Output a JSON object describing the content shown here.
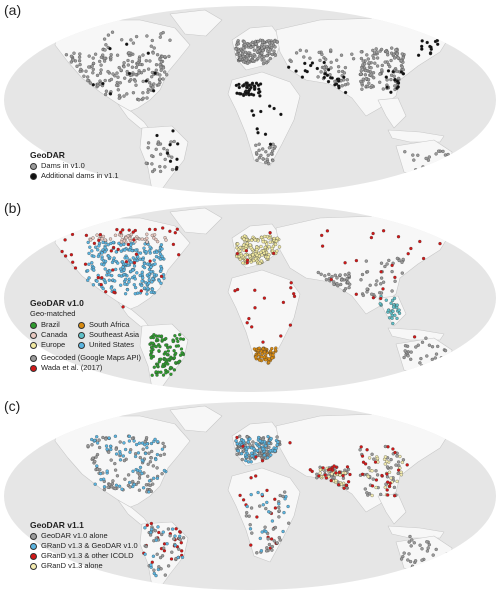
{
  "panels": [
    {
      "label": "(a)",
      "legend": {
        "title": "GeoDAR",
        "items": [
          {
            "label": "Dams in v1.0",
            "color": "#9a9a9a"
          },
          {
            "label": "Additional dams in v1.1",
            "color": "#111111"
          }
        ]
      }
    },
    {
      "label": "(b)",
      "legend": {
        "title": "GeoDAR v1.0",
        "subtitle": "Geo-matched",
        "grid": [
          {
            "label": "Brazil",
            "color": "#2e9a2e"
          },
          {
            "label": "South Africa",
            "color": "#d88a10"
          },
          {
            "label": "Canada",
            "color": "#e8c8c0"
          },
          {
            "label": "Southeast Asia",
            "color": "#5fc0c8"
          },
          {
            "label": "Europe",
            "color": "#f0e8a0"
          },
          {
            "label": "United States",
            "color": "#5ab4e0"
          }
        ],
        "items": [
          {
            "label": "Geocoded (Google Maps API)",
            "color": "#9a9a9a"
          },
          {
            "label": "Wada et al. (2017)",
            "color": "#d01818"
          }
        ]
      }
    },
    {
      "label": "(c)",
      "legend": {
        "title": "GeoDAR v1.1",
        "items": [
          {
            "label": "GeoDAR v1.0 alone",
            "color": "#9a9a9a"
          },
          {
            "label": "GRanD v1.3 & GeoDAR v1.0",
            "color": "#5ab4e0"
          },
          {
            "label": "GRanD v1.3 & other ICOLD",
            "color": "#d01818"
          },
          {
            "label": "GRanD v1.3 alone",
            "color": "#f4ecb0"
          }
        ]
      }
    }
  ],
  "colors": {
    "ocean": "#e6e6e6",
    "land": "#f7f7f7",
    "border": "#c8c8c8"
  }
}
